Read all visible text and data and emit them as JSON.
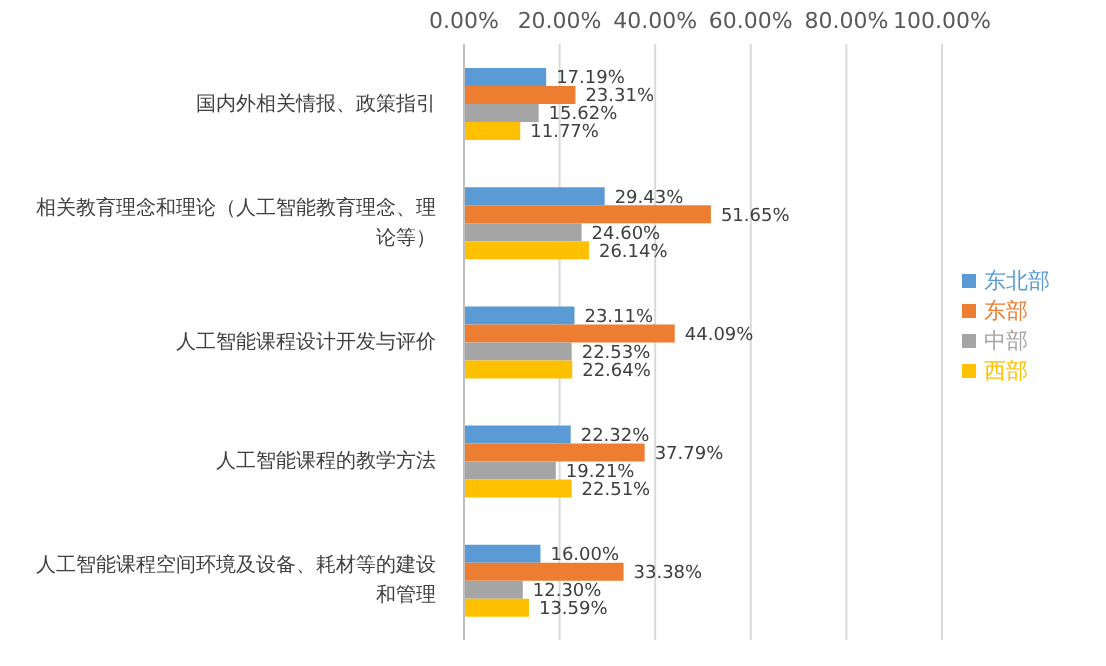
{
  "chart_data": {
    "type": "bar",
    "orientation": "horizontal",
    "categories": [
      "国内外相关情报、政策指引",
      "相关教育理念和理论（人工智能教育理念、理论等）",
      "人工智能课程设计开发与评价",
      "人工智能课程的教学方法",
      "人工智能课程空间环境及设备、耗材等的建设和管理"
    ],
    "series": [
      {
        "name": "东北部",
        "color": "#5b9bd5",
        "values": [
          17.19,
          29.43,
          23.11,
          22.32,
          16.0
        ],
        "value_labels": [
          "17.19%",
          "29.43%",
          "23.11%",
          "22.32%",
          "16.00%"
        ]
      },
      {
        "name": "东部",
        "color": "#ed7d31",
        "values": [
          23.31,
          51.65,
          44.09,
          37.79,
          33.38
        ],
        "value_labels": [
          "23.31%",
          "51.65%",
          "44.09%",
          "37.79%",
          "33.38%"
        ]
      },
      {
        "name": "中部",
        "color": "#a5a5a5",
        "values": [
          15.62,
          24.6,
          22.53,
          19.21,
          12.3
        ],
        "value_labels": [
          "15.62%",
          "24.60%",
          "22.53%",
          "19.21%",
          "12.30%"
        ]
      },
      {
        "name": "西部",
        "color": "#ffc000",
        "values": [
          11.77,
          26.14,
          22.64,
          22.51,
          13.59
        ],
        "value_labels": [
          "11.77%",
          "26.14%",
          "22.64%",
          "22.51%",
          "13.59%"
        ]
      }
    ],
    "xlim": [
      0,
      100
    ],
    "xticks": [
      {
        "value": 0,
        "label": "0.00%"
      },
      {
        "value": 20,
        "label": "20.00%"
      },
      {
        "value": 40,
        "label": "40.00%"
      },
      {
        "value": 60,
        "label": "60.00%"
      },
      {
        "value": 80,
        "label": "80.00%"
      },
      {
        "value": 100,
        "label": "100.00%"
      }
    ],
    "grid": "x",
    "legend": "right"
  }
}
